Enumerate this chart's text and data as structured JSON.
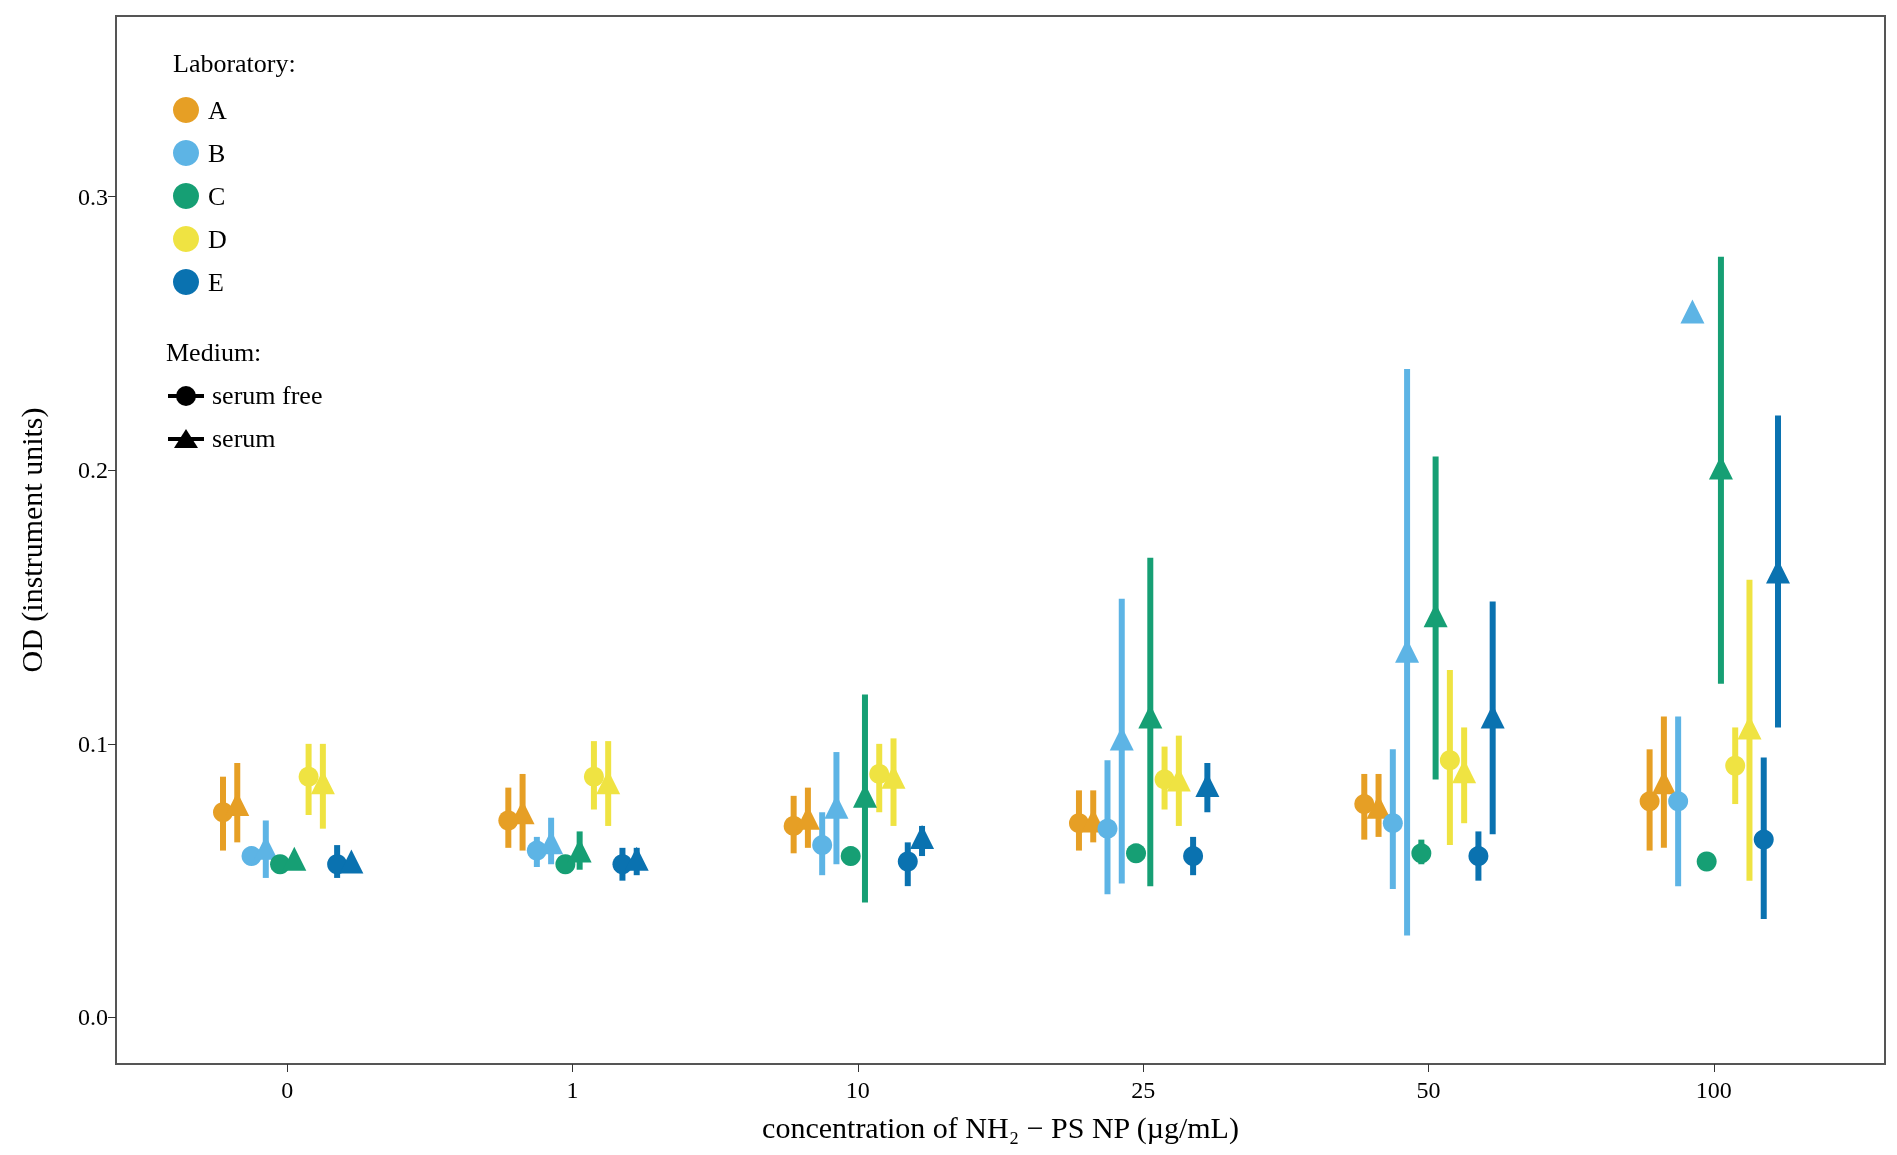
{
  "chart_data": {
    "type": "scatter",
    "xlabel": "concentration of NH₂ − PS NP (µg/mL)",
    "ylabel": "OD (instrument units)",
    "legend_title": "Laboratory:",
    "legend": "top left",
    "grid": false,
    "annotations": [
      "Medium:",
      "serum free",
      "serum"
    ],
    "categories": [
      "0",
      "1",
      "10",
      "25",
      "50",
      "100"
    ],
    "ylim": [
      -0.017,
      0.366
    ],
    "yticks": [
      {
        "value": 0,
        "label": "0.0"
      },
      0.1,
      0.2,
      0.3
    ],
    "series": [
      {
        "name": "A",
        "color": "#e69f25",
        "marker": "circle",
        "values": [
          0.075,
          0.072,
          0.07,
          0.071,
          0.078,
          0.079
        ],
        "errors": [
          [
            0.061,
            0.088
          ],
          [
            0.062,
            0.084
          ],
          [
            0.06,
            0.081
          ],
          [
            0.061,
            0.083
          ],
          [
            0.065,
            0.089
          ],
          [
            0.061,
            0.098
          ]
        ]
      },
      {
        "color": "#e69f25",
        "marker": "triangle",
        "values": [
          0.078,
          0.075,
          0.073,
          0.072,
          0.077,
          0.086
        ],
        "errors": [
          [
            0.064,
            0.093
          ],
          [
            0.061,
            0.089
          ],
          [
            0.062,
            0.084
          ],
          [
            0.064,
            0.083
          ],
          [
            0.066,
            0.089
          ],
          [
            0.062,
            0.11
          ]
        ]
      },
      {
        "name": "B",
        "color": "#5db4e5",
        "marker": "circle",
        "values": [
          0.059,
          0.061,
          0.063,
          0.069,
          0.071,
          0.079
        ],
        "errors": [
          null,
          [
            0.055,
            0.066
          ],
          [
            0.052,
            0.075
          ],
          [
            0.045,
            0.094
          ],
          [
            0.047,
            0.098
          ],
          [
            0.048,
            0.11
          ]
        ]
      },
      {
        "color": "#5db4e5",
        "marker": "triangle",
        "values": [
          0.062,
          0.064,
          0.077,
          0.102,
          0.134,
          0.258
        ],
        "errors": [
          [
            0.051,
            0.072
          ],
          [
            0.056,
            0.073
          ],
          [
            0.056,
            0.097
          ],
          [
            0.049,
            0.153
          ],
          [
            0.03,
            0.237
          ],
          null
        ]
      },
      {
        "name": "C",
        "color": "#169f74",
        "marker": "circle",
        "values": [
          0.056,
          0.056,
          0.059,
          0.06,
          0.06,
          0.057
        ],
        "errors": [
          null,
          null,
          null,
          null,
          [
            0.056,
            0.065
          ],
          null
        ]
      },
      {
        "color": "#169f74",
        "marker": "triangle",
        "values": [
          0.058,
          0.061,
          0.081,
          0.11,
          0.147,
          0.201
        ],
        "errors": [
          null,
          [
            0.054,
            0.068
          ],
          [
            0.042,
            0.118
          ],
          [
            0.048,
            0.168
          ],
          [
            0.087,
            0.205
          ],
          [
            0.122,
            0.278
          ]
        ]
      },
      {
        "name": "D",
        "color": "#efe342",
        "marker": "circle",
        "values": [
          0.088,
          0.088,
          0.089,
          0.087,
          0.094,
          0.092
        ],
        "errors": [
          [
            0.074,
            0.1
          ],
          [
            0.076,
            0.101
          ],
          [
            0.075,
            0.1
          ],
          [
            0.076,
            0.099
          ],
          [
            0.063,
            0.127
          ],
          [
            0.078,
            0.106
          ]
        ]
      },
      {
        "color": "#efe342",
        "marker": "triangle",
        "values": [
          0.086,
          0.086,
          0.088,
          0.087,
          0.09,
          0.106
        ],
        "errors": [
          [
            0.069,
            0.1
          ],
          [
            0.07,
            0.101
          ],
          [
            0.07,
            0.102
          ],
          [
            0.07,
            0.103
          ],
          [
            0.071,
            0.106
          ],
          [
            0.05,
            0.16
          ]
        ]
      },
      {
        "name": "E",
        "color": "#0a72b0",
        "marker": "circle",
        "values": [
          0.056,
          0.056,
          0.057,
          0.059,
          0.059,
          0.065
        ],
        "errors": [
          [
            0.051,
            0.063
          ],
          [
            0.05,
            0.062
          ],
          [
            0.048,
            0.064
          ],
          [
            0.052,
            0.066
          ],
          [
            0.05,
            0.068
          ],
          [
            0.036,
            0.095
          ]
        ]
      },
      {
        "color": "#0a72b0",
        "marker": "triangle",
        "values": [
          0.057,
          0.058,
          0.066,
          0.085,
          0.11,
          0.163
        ],
        "errors": [
          null,
          [
            0.052,
            0.062
          ],
          [
            0.059,
            0.07
          ],
          [
            0.075,
            0.093
          ],
          [
            0.067,
            0.152
          ],
          [
            0.106,
            0.22
          ]
        ]
      }
    ]
  }
}
